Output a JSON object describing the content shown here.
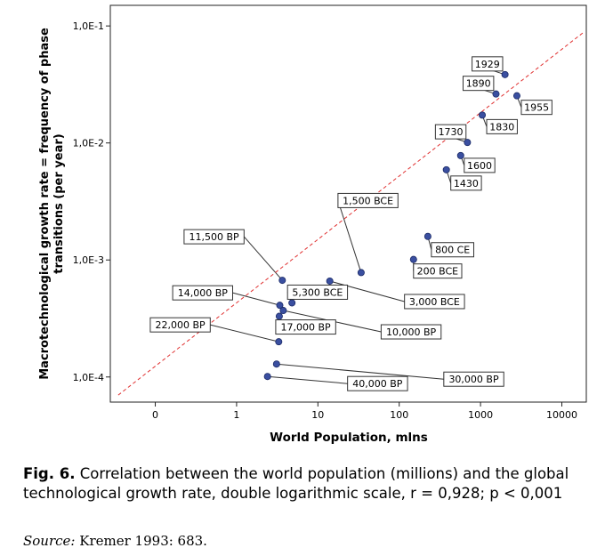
{
  "chart_data": {
    "type": "scatter",
    "xlabel": "World Population, mlns",
    "ylabel_line1": "Macrotechnological growth rate = frequency of phase",
    "ylabel_line2": "transitions (per year)",
    "x_scale": "log",
    "y_scale": "log",
    "x_ticks": [
      {
        "value": 0.1,
        "label": "0"
      },
      {
        "value": 1,
        "label": "1"
      },
      {
        "value": 10,
        "label": "10"
      },
      {
        "value": 100,
        "label": "100"
      },
      {
        "value": 1000,
        "label": "1000"
      },
      {
        "value": 10000,
        "label": "10000"
      }
    ],
    "y_ticks": [
      {
        "value": 0.0001,
        "label": "1,0E-4"
      },
      {
        "value": 0.001,
        "label": "1,0E-3"
      },
      {
        "value": 0.01,
        "label": "1,0E-2"
      },
      {
        "value": 0.1,
        "label": "1,0E-1"
      }
    ],
    "xlim": [
      0.028,
      20000
    ],
    "ylim": [
      6.1e-05,
      0.15
    ],
    "grid": false,
    "point_color": "#3a4fa0",
    "fit_line_color": "#e03030",
    "fit_line": {
      "style": "dashed",
      "from": [
        0.035,
        7e-05
      ],
      "to": [
        19000,
        0.0895
      ]
    },
    "points": [
      {
        "label": "40,000 BP",
        "x": 2.4,
        "y": 0.000101
      },
      {
        "label": "30,000 BP",
        "x": 3.1,
        "y": 0.000129
      },
      {
        "label": "22,000 BP",
        "x": 3.3,
        "y": 0.0002
      },
      {
        "label": "17,000 BP",
        "x": 3.35,
        "y": 0.00033
      },
      {
        "label": "14,000 BP",
        "x": 3.4,
        "y": 0.00041
      },
      {
        "label": "10,000 BP",
        "x": 3.75,
        "y": 0.00037
      },
      {
        "label": "11,500 BP",
        "x": 3.65,
        "y": 0.00067
      },
      {
        "label": "5,300 BCE",
        "x": 4.8,
        "y": 0.00043
      },
      {
        "label": "3,000 BCE",
        "x": 14,
        "y": 0.00066
      },
      {
        "label": "1,500 BCE",
        "x": 34,
        "y": 0.00078
      },
      {
        "label": "200 BCE",
        "x": 150,
        "y": 0.00101
      },
      {
        "label": "800 CE",
        "x": 225,
        "y": 0.00159
      },
      {
        "label": "1430",
        "x": 380,
        "y": 0.0059
      },
      {
        "label": "1600",
        "x": 570,
        "y": 0.0078
      },
      {
        "label": "1730",
        "x": 690,
        "y": 0.0101
      },
      {
        "label": "1830",
        "x": 1050,
        "y": 0.0173
      },
      {
        "label": "1890",
        "x": 1550,
        "y": 0.0262
      },
      {
        "label": "1929",
        "x": 2000,
        "y": 0.0384
      },
      {
        "label": "1955",
        "x": 2800,
        "y": 0.0253
      }
    ]
  },
  "caption": {
    "fig_label": "Fig. 6.",
    "text": "Correlation between the world population (millions) and the global technological growth rate, double logarithmic scale, r = 0,928; p < 0,001"
  },
  "source": {
    "label": "Source:",
    "text": "Kremer 1993: 683."
  }
}
